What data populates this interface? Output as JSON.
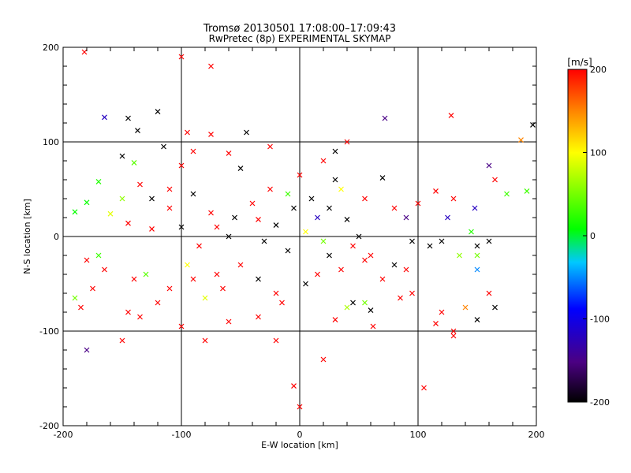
{
  "chart_data": {
    "type": "scatter",
    "title": "Tromsø 20130501 17:08:00–17:09:43",
    "subtitle": "RwPretec (8p) EXPERIMENTAL SKYMAP",
    "xlabel": "E-W location [km]",
    "ylabel": "N-S location [km]",
    "xlim": [
      -200,
      200
    ],
    "ylim": [
      -200,
      200
    ],
    "xticks": [
      -200,
      -100,
      0,
      100,
      200
    ],
    "yticks": [
      -200,
      -100,
      0,
      100,
      200
    ],
    "grid": true,
    "colorbar": {
      "label": "[m/s]",
      "min": -200,
      "max": 200,
      "ticks": [
        200,
        100,
        0,
        -100,
        -200
      ],
      "colormap": [
        "#000000",
        "#4b0082",
        "#0000ff",
        "#00ffff",
        "#00ff00",
        "#ffff00",
        "#ff8000",
        "#ff0000"
      ]
    },
    "series": [
      {
        "marker": "x",
        "points": [
          {
            "x": -182,
            "y": 195,
            "v": 200
          },
          {
            "x": -100,
            "y": 190,
            "v": 200
          },
          {
            "x": -75,
            "y": 180,
            "v": 200
          },
          {
            "x": -120,
            "y": 132,
            "v": -200
          },
          {
            "x": -145,
            "y": 125,
            "v": -200
          },
          {
            "x": -165,
            "y": 126,
            "v": -120
          },
          {
            "x": -137,
            "y": 112,
            "v": -200
          },
          {
            "x": -115,
            "y": 95,
            "v": -200
          },
          {
            "x": -95,
            "y": 110,
            "v": 200
          },
          {
            "x": -75,
            "y": 108,
            "v": 200
          },
          {
            "x": -45,
            "y": 110,
            "v": -200
          },
          {
            "x": -90,
            "y": 90,
            "v": 200
          },
          {
            "x": -60,
            "y": 88,
            "v": 200
          },
          {
            "x": -50,
            "y": 72,
            "v": -200
          },
          {
            "x": -140,
            "y": 78,
            "v": 40
          },
          {
            "x": -150,
            "y": 85,
            "v": -200
          },
          {
            "x": -170,
            "y": 58,
            "v": 20
          },
          {
            "x": -190,
            "y": 26,
            "v": 10
          },
          {
            "x": -180,
            "y": 36,
            "v": 10
          },
          {
            "x": -160,
            "y": 24,
            "v": 90
          },
          {
            "x": -150,
            "y": 40,
            "v": 60
          },
          {
            "x": -145,
            "y": 14,
            "v": 200
          },
          {
            "x": -125,
            "y": 8,
            "v": 200
          },
          {
            "x": -135,
            "y": 55,
            "v": 200
          },
          {
            "x": -110,
            "y": 30,
            "v": 200
          },
          {
            "x": -100,
            "y": 10,
            "v": -200
          },
          {
            "x": -90,
            "y": 45,
            "v": -200
          },
          {
            "x": -75,
            "y": 25,
            "v": 200
          },
          {
            "x": -55,
            "y": 20,
            "v": -200
          },
          {
            "x": -35,
            "y": 18,
            "v": 200
          },
          {
            "x": -20,
            "y": 12,
            "v": -200
          },
          {
            "x": -5,
            "y": 30,
            "v": -200
          },
          {
            "x": 10,
            "y": 40,
            "v": -200
          },
          {
            "x": 25,
            "y": 30,
            "v": -200
          },
          {
            "x": 30,
            "y": 60,
            "v": -200
          },
          {
            "x": 40,
            "y": 18,
            "v": -200
          },
          {
            "x": 50,
            "y": 0,
            "v": -200
          },
          {
            "x": 55,
            "y": -25,
            "v": 200
          },
          {
            "x": 70,
            "y": 62,
            "v": -200
          },
          {
            "x": 72,
            "y": 125,
            "v": -150
          },
          {
            "x": 80,
            "y": 30,
            "v": 200
          },
          {
            "x": 90,
            "y": 20,
            "v": -150
          },
          {
            "x": 100,
            "y": 35,
            "v": 200
          },
          {
            "x": 115,
            "y": 48,
            "v": 200
          },
          {
            "x": 95,
            "y": -5,
            "v": -200
          },
          {
            "x": 110,
            "y": -10,
            "v": -200
          },
          {
            "x": 125,
            "y": 20,
            "v": -120
          },
          {
            "x": 130,
            "y": 40,
            "v": 200
          },
          {
            "x": 148,
            "y": 30,
            "v": -120
          },
          {
            "x": 160,
            "y": 75,
            "v": -150
          },
          {
            "x": 165,
            "y": 60,
            "v": 200
          },
          {
            "x": 175,
            "y": 45,
            "v": 30
          },
          {
            "x": 192,
            "y": 48,
            "v": 30
          },
          {
            "x": 197,
            "y": 118,
            "v": -200
          },
          {
            "x": 187,
            "y": 102,
            "v": 150
          },
          {
            "x": 128,
            "y": 128,
            "v": 200
          },
          {
            "x": 145,
            "y": 5,
            "v": 20
          },
          {
            "x": 150,
            "y": -10,
            "v": -200
          },
          {
            "x": 160,
            "y": -5,
            "v": -200
          },
          {
            "x": 150,
            "y": -20,
            "v": 50
          },
          {
            "x": 135,
            "y": -20,
            "v": 60
          },
          {
            "x": 150,
            "y": -35,
            "v": -50
          },
          {
            "x": 120,
            "y": -5,
            "v": -200
          },
          {
            "x": 160,
            "y": -60,
            "v": 200
          },
          {
            "x": 165,
            "y": -75,
            "v": -200
          },
          {
            "x": 140,
            "y": -75,
            "v": 150
          },
          {
            "x": 150,
            "y": -88,
            "v": -200
          },
          {
            "x": 120,
            "y": -80,
            "v": 200
          },
          {
            "x": 115,
            "y": -92,
            "v": 200
          },
          {
            "x": 130,
            "y": -100,
            "v": 200
          },
          {
            "x": 130,
            "y": -105,
            "v": 200
          },
          {
            "x": 105,
            "y": -160,
            "v": 200
          },
          {
            "x": 95,
            "y": -60,
            "v": 200
          },
          {
            "x": 85,
            "y": -65,
            "v": 200
          },
          {
            "x": 60,
            "y": -78,
            "v": -200
          },
          {
            "x": 62,
            "y": -95,
            "v": 200
          },
          {
            "x": 55,
            "y": -70,
            "v": 50
          },
          {
            "x": 45,
            "y": -70,
            "v": -200
          },
          {
            "x": 40,
            "y": -75,
            "v": 70
          },
          {
            "x": 30,
            "y": -88,
            "v": 200
          },
          {
            "x": 20,
            "y": -130,
            "v": 200
          },
          {
            "x": 0,
            "y": -180,
            "v": 200
          },
          {
            "x": -5,
            "y": -158,
            "v": 200
          },
          {
            "x": -20,
            "y": -110,
            "v": 200
          },
          {
            "x": -35,
            "y": -85,
            "v": 200
          },
          {
            "x": -60,
            "y": -90,
            "v": 200
          },
          {
            "x": -80,
            "y": -110,
            "v": 200
          },
          {
            "x": -100,
            "y": -95,
            "v": 200
          },
          {
            "x": -120,
            "y": -70,
            "v": 200
          },
          {
            "x": -135,
            "y": -85,
            "v": 200
          },
          {
            "x": -145,
            "y": -80,
            "v": 200
          },
          {
            "x": -150,
            "y": -110,
            "v": 200
          },
          {
            "x": -180,
            "y": -120,
            "v": -150
          },
          {
            "x": -190,
            "y": -65,
            "v": 50
          },
          {
            "x": -185,
            "y": -75,
            "v": 200
          },
          {
            "x": -175,
            "y": -55,
            "v": 200
          },
          {
            "x": -180,
            "y": -25,
            "v": 200
          },
          {
            "x": -165,
            "y": -35,
            "v": 200
          },
          {
            "x": -170,
            "y": -20,
            "v": 30
          },
          {
            "x": -140,
            "y": -45,
            "v": 200
          },
          {
            "x": -130,
            "y": -40,
            "v": 40
          },
          {
            "x": -110,
            "y": -55,
            "v": 200
          },
          {
            "x": -90,
            "y": -45,
            "v": 200
          },
          {
            "x": -70,
            "y": -40,
            "v": 200
          },
          {
            "x": -50,
            "y": -30,
            "v": 200
          },
          {
            "x": -35,
            "y": -45,
            "v": -200
          },
          {
            "x": -20,
            "y": -60,
            "v": 200
          },
          {
            "x": -15,
            "y": -70,
            "v": 200
          },
          {
            "x": 5,
            "y": -50,
            "v": -200
          },
          {
            "x": 15,
            "y": -40,
            "v": 200
          },
          {
            "x": 25,
            "y": -20,
            "v": -200
          },
          {
            "x": 35,
            "y": -35,
            "v": 200
          },
          {
            "x": 45,
            "y": -10,
            "v": 200
          },
          {
            "x": 60,
            "y": -20,
            "v": 200
          },
          {
            "x": 70,
            "y": -45,
            "v": 200
          },
          {
            "x": 80,
            "y": -30,
            "v": -200
          },
          {
            "x": 90,
            "y": -35,
            "v": 200
          },
          {
            "x": -60,
            "y": 0,
            "v": -200
          },
          {
            "x": -70,
            "y": 10,
            "v": 200
          },
          {
            "x": -85,
            "y": -10,
            "v": 200
          },
          {
            "x": -30,
            "y": -5,
            "v": -200
          },
          {
            "x": -10,
            "y": -15,
            "v": -200
          },
          {
            "x": 5,
            "y": 5,
            "v": 100
          },
          {
            "x": 15,
            "y": 20,
            "v": -120
          },
          {
            "x": 20,
            "y": -5,
            "v": 50
          },
          {
            "x": -40,
            "y": 35,
            "v": 200
          },
          {
            "x": -25,
            "y": 50,
            "v": 200
          },
          {
            "x": -10,
            "y": 45,
            "v": 30
          },
          {
            "x": 0,
            "y": 65,
            "v": 200
          },
          {
            "x": 35,
            "y": 50,
            "v": 100
          },
          {
            "x": 55,
            "y": 40,
            "v": 200
          },
          {
            "x": 40,
            "y": 100,
            "v": 200
          },
          {
            "x": 30,
            "y": 90,
            "v": -200
          },
          {
            "x": 20,
            "y": 80,
            "v": 200
          },
          {
            "x": -25,
            "y": 95,
            "v": 200
          },
          {
            "x": -100,
            "y": 75,
            "v": 200
          },
          {
            "x": -110,
            "y": 50,
            "v": 200
          },
          {
            "x": -125,
            "y": 40,
            "v": -200
          },
          {
            "x": -95,
            "y": -30,
            "v": 100
          },
          {
            "x": -80,
            "y": -65,
            "v": 90
          },
          {
            "x": -65,
            "y": -55,
            "v": 200
          }
        ]
      }
    ]
  }
}
